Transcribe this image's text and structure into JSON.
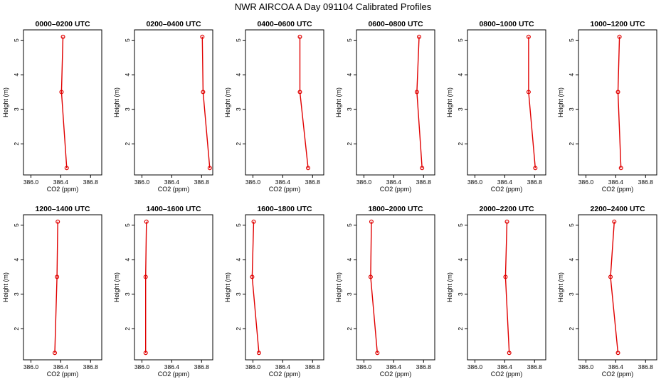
{
  "figure_title": "NWR AIRCOA A  Day 091104  Calibrated Profiles",
  "colors": {
    "series": "#e00000",
    "axis": "#000000"
  },
  "chart_data": [
    {
      "type": "line",
      "title": "0000–0200 UTC",
      "xlabel": "CO2 (ppm)",
      "ylabel": "Height (m)",
      "xlim": [
        385.9,
        386.95
      ],
      "ylim": [
        1.1,
        5.3
      ],
      "x_ticks": [
        "386.0",
        "386.4",
        "386.8"
      ],
      "y_ticks": [
        "2",
        "3",
        "4",
        "5"
      ],
      "grid": false,
      "series": [
        {
          "x": [
            386.43,
            386.41,
            386.48
          ],
          "y": [
            5.1,
            3.5,
            1.3
          ]
        }
      ]
    },
    {
      "type": "line",
      "title": "0200–0400 UTC",
      "xlabel": "CO2 (ppm)",
      "ylabel": "Height (m)",
      "xlim": [
        385.9,
        386.95
      ],
      "ylim": [
        1.1,
        5.3
      ],
      "x_ticks": [
        "386.0",
        "386.4",
        "386.8"
      ],
      "y_ticks": [
        "2",
        "3",
        "4",
        "5"
      ],
      "grid": false,
      "series": [
        {
          "x": [
            386.81,
            386.82,
            386.91
          ],
          "y": [
            5.1,
            3.5,
            1.3
          ]
        }
      ]
    },
    {
      "type": "line",
      "title": "0400–0600 UTC",
      "xlabel": "CO2 (ppm)",
      "ylabel": "Height (m)",
      "xlim": [
        385.9,
        386.95
      ],
      "ylim": [
        1.1,
        5.3
      ],
      "x_ticks": [
        "386.0",
        "386.4",
        "386.8"
      ],
      "y_ticks": [
        "2",
        "3",
        "4",
        "5"
      ],
      "grid": false,
      "series": [
        {
          "x": [
            386.63,
            386.63,
            386.74
          ],
          "y": [
            5.1,
            3.5,
            1.3
          ]
        }
      ]
    },
    {
      "type": "line",
      "title": "0600–0800 UTC",
      "xlabel": "CO2 (ppm)",
      "ylabel": "Height (m)",
      "xlim": [
        385.9,
        386.95
      ],
      "ylim": [
        1.1,
        5.3
      ],
      "x_ticks": [
        "386.0",
        "386.4",
        "386.8"
      ],
      "y_ticks": [
        "2",
        "3",
        "4",
        "5"
      ],
      "grid": false,
      "series": [
        {
          "x": [
            386.74,
            386.71,
            386.78
          ],
          "y": [
            5.1,
            3.5,
            1.3
          ]
        }
      ]
    },
    {
      "type": "line",
      "title": "0800–1000 UTC",
      "xlabel": "CO2 (ppm)",
      "ylabel": "Height (m)",
      "xlim": [
        385.9,
        386.95
      ],
      "ylim": [
        1.1,
        5.3
      ],
      "x_ticks": [
        "386.0",
        "386.4",
        "386.8"
      ],
      "y_ticks": [
        "2",
        "3",
        "4",
        "5"
      ],
      "grid": false,
      "series": [
        {
          "x": [
            386.72,
            386.72,
            386.81
          ],
          "y": [
            5.1,
            3.5,
            1.3
          ]
        }
      ]
    },
    {
      "type": "line",
      "title": "1000–1200 UTC",
      "xlabel": "CO2 (ppm)",
      "ylabel": "Height (m)",
      "xlim": [
        385.9,
        386.95
      ],
      "ylim": [
        1.1,
        5.3
      ],
      "x_ticks": [
        "386.0",
        "386.4",
        "386.8"
      ],
      "y_ticks": [
        "2",
        "3",
        "4",
        "5"
      ],
      "grid": false,
      "series": [
        {
          "x": [
            386.45,
            386.43,
            386.47
          ],
          "y": [
            5.1,
            3.5,
            1.3
          ]
        }
      ]
    },
    {
      "type": "line",
      "title": "1200–1400 UTC",
      "xlabel": "CO2 (ppm)",
      "ylabel": "Height (m)",
      "xlim": [
        385.9,
        386.95
      ],
      "ylim": [
        1.1,
        5.3
      ],
      "x_ticks": [
        "386.0",
        "386.4",
        "386.8"
      ],
      "y_ticks": [
        "2",
        "3",
        "4",
        "5"
      ],
      "grid": false,
      "series": [
        {
          "x": [
            386.36,
            386.35,
            386.32
          ],
          "y": [
            5.1,
            3.5,
            1.3
          ]
        }
      ]
    },
    {
      "type": "line",
      "title": "1400–1600 UTC",
      "xlabel": "CO2 (ppm)",
      "ylabel": "Height (m)",
      "xlim": [
        385.9,
        386.95
      ],
      "ylim": [
        1.1,
        5.3
      ],
      "x_ticks": [
        "386.0",
        "386.4",
        "386.8"
      ],
      "y_ticks": [
        "2",
        "3",
        "4",
        "5"
      ],
      "grid": false,
      "series": [
        {
          "x": [
            386.06,
            386.05,
            386.05
          ],
          "y": [
            5.1,
            3.5,
            1.3
          ]
        }
      ]
    },
    {
      "type": "line",
      "title": "1600–1800 UTC",
      "xlabel": "CO2 (ppm)",
      "ylabel": "Height (m)",
      "xlim": [
        385.9,
        386.95
      ],
      "ylim": [
        1.1,
        5.3
      ],
      "x_ticks": [
        "386.0",
        "386.4",
        "386.8"
      ],
      "y_ticks": [
        "2",
        "3",
        "4",
        "5"
      ],
      "grid": false,
      "series": [
        {
          "x": [
            386.01,
            385.99,
            386.08
          ],
          "y": [
            5.1,
            3.5,
            1.3
          ]
        }
      ]
    },
    {
      "type": "line",
      "title": "1800–2000 UTC",
      "xlabel": "CO2 (ppm)",
      "ylabel": "Height (m)",
      "xlim": [
        385.9,
        386.95
      ],
      "ylim": [
        1.1,
        5.3
      ],
      "x_ticks": [
        "386.0",
        "386.4",
        "386.8"
      ],
      "y_ticks": [
        "2",
        "3",
        "4",
        "5"
      ],
      "grid": false,
      "series": [
        {
          "x": [
            386.1,
            386.09,
            386.18
          ],
          "y": [
            5.1,
            3.5,
            1.3
          ]
        }
      ]
    },
    {
      "type": "line",
      "title": "2000–2200 UTC",
      "xlabel": "CO2 (ppm)",
      "ylabel": "Height (m)",
      "xlim": [
        385.9,
        386.95
      ],
      "ylim": [
        1.1,
        5.3
      ],
      "x_ticks": [
        "386.0",
        "386.4",
        "386.8"
      ],
      "y_ticks": [
        "2",
        "3",
        "4",
        "5"
      ],
      "grid": false,
      "series": [
        {
          "x": [
            386.43,
            386.41,
            386.46
          ],
          "y": [
            5.1,
            3.5,
            1.3
          ]
        }
      ]
    },
    {
      "type": "line",
      "title": "2200–2400 UTC",
      "xlabel": "CO2 (ppm)",
      "ylabel": "Height (m)",
      "xlim": [
        385.9,
        386.95
      ],
      "ylim": [
        1.1,
        5.3
      ],
      "x_ticks": [
        "386.0",
        "386.4",
        "386.8"
      ],
      "y_ticks": [
        "2",
        "3",
        "4",
        "5"
      ],
      "grid": false,
      "series": [
        {
          "x": [
            386.38,
            386.33,
            386.43
          ],
          "y": [
            5.1,
            3.5,
            1.3
          ]
        }
      ]
    }
  ]
}
